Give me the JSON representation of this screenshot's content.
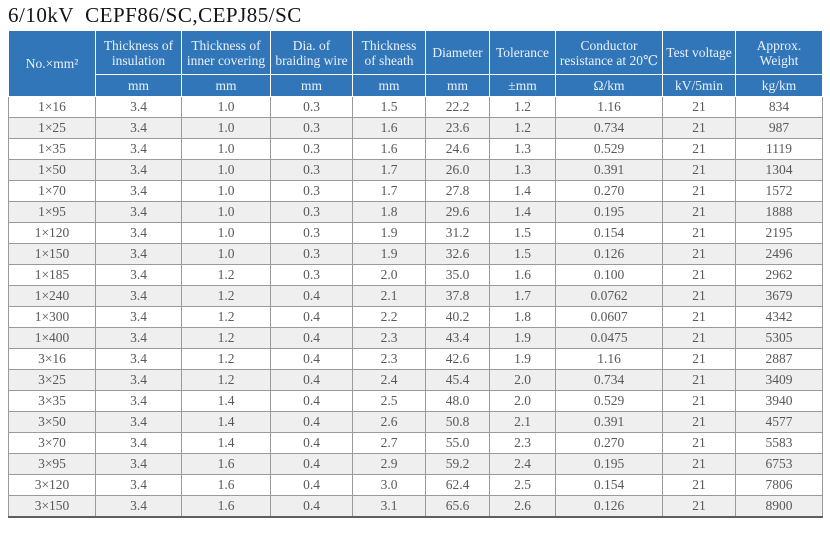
{
  "title": "6/10kV  CEPF86/SC,CEPJ85/SC",
  "colors": {
    "header_bg": "#3076b9",
    "header_text": "#edf2fa",
    "row_alt_bg": "#efefef",
    "body_text": "#595959",
    "grid_border": "#9a9a9a",
    "title_text": "#141414"
  },
  "table": {
    "columns": [
      {
        "label": "No.×mm²",
        "unit": ""
      },
      {
        "label": "Thickness of insulation",
        "unit": "mm"
      },
      {
        "label": "Thickness of inner covering",
        "unit": "mm"
      },
      {
        "label": "Dia. of braiding wire",
        "unit": "mm"
      },
      {
        "label": "Thickness of sheath",
        "unit": "mm"
      },
      {
        "label": "Diameter",
        "unit": "mm"
      },
      {
        "label": "Tolerance",
        "unit": "±mm"
      },
      {
        "label": "Conductor resistance at 20℃",
        "unit": "Ω/km"
      },
      {
        "label": "Test voltage",
        "unit": "kV/5min"
      },
      {
        "label": "Approx. Weight",
        "unit": "kg/km"
      }
    ],
    "rows": [
      [
        "1×16",
        "3.4",
        "1.0",
        "0.3",
        "1.5",
        "22.2",
        "1.2",
        "1.16",
        "21",
        "834"
      ],
      [
        "1×25",
        "3.4",
        "1.0",
        "0.3",
        "1.6",
        "23.6",
        "1.2",
        "0.734",
        "21",
        "987"
      ],
      [
        "1×35",
        "3.4",
        "1.0",
        "0.3",
        "1.6",
        "24.6",
        "1.3",
        "0.529",
        "21",
        "1119"
      ],
      [
        "1×50",
        "3.4",
        "1.0",
        "0.3",
        "1.7",
        "26.0",
        "1.3",
        "0.391",
        "21",
        "1304"
      ],
      [
        "1×70",
        "3.4",
        "1.0",
        "0.3",
        "1.7",
        "27.8",
        "1.4",
        "0.270",
        "21",
        "1572"
      ],
      [
        "1×95",
        "3.4",
        "1.0",
        "0.3",
        "1.8",
        "29.6",
        "1.4",
        "0.195",
        "21",
        "1888"
      ],
      [
        "1×120",
        "3.4",
        "1.0",
        "0.3",
        "1.9",
        "31.2",
        "1.5",
        "0.154",
        "21",
        "2195"
      ],
      [
        "1×150",
        "3.4",
        "1.0",
        "0.3",
        "1.9",
        "32.6",
        "1.5",
        "0.126",
        "21",
        "2496"
      ],
      [
        "1×185",
        "3.4",
        "1.2",
        "0.3",
        "2.0",
        "35.0",
        "1.6",
        "0.100",
        "21",
        "2962"
      ],
      [
        "1×240",
        "3.4",
        "1.2",
        "0.4",
        "2.1",
        "37.8",
        "1.7",
        "0.0762",
        "21",
        "3679"
      ],
      [
        "1×300",
        "3.4",
        "1.2",
        "0.4",
        "2.2",
        "40.2",
        "1.8",
        "0.0607",
        "21",
        "4342"
      ],
      [
        "1×400",
        "3.4",
        "1.2",
        "0.4",
        "2.3",
        "43.4",
        "1.9",
        "0.0475",
        "21",
        "5305"
      ],
      [
        "3×16",
        "3.4",
        "1.2",
        "0.4",
        "2.3",
        "42.6",
        "1.9",
        "1.16",
        "21",
        "2887"
      ],
      [
        "3×25",
        "3.4",
        "1.2",
        "0.4",
        "2.4",
        "45.4",
        "2.0",
        "0.734",
        "21",
        "3409"
      ],
      [
        "3×35",
        "3.4",
        "1.4",
        "0.4",
        "2.5",
        "48.0",
        "2.0",
        "0.529",
        "21",
        "3940"
      ],
      [
        "3×50",
        "3.4",
        "1.4",
        "0.4",
        "2.6",
        "50.8",
        "2.1",
        "0.391",
        "21",
        "4577"
      ],
      [
        "3×70",
        "3.4",
        "1.4",
        "0.4",
        "2.7",
        "55.0",
        "2.3",
        "0.270",
        "21",
        "5583"
      ],
      [
        "3×95",
        "3.4",
        "1.6",
        "0.4",
        "2.9",
        "59.2",
        "2.4",
        "0.195",
        "21",
        "6753"
      ],
      [
        "3×120",
        "3.4",
        "1.6",
        "0.4",
        "3.0",
        "62.4",
        "2.5",
        "0.154",
        "21",
        "7806"
      ],
      [
        "3×150",
        "3.4",
        "1.6",
        "0.4",
        "3.1",
        "65.6",
        "2.6",
        "0.126",
        "21",
        "8900"
      ]
    ]
  }
}
